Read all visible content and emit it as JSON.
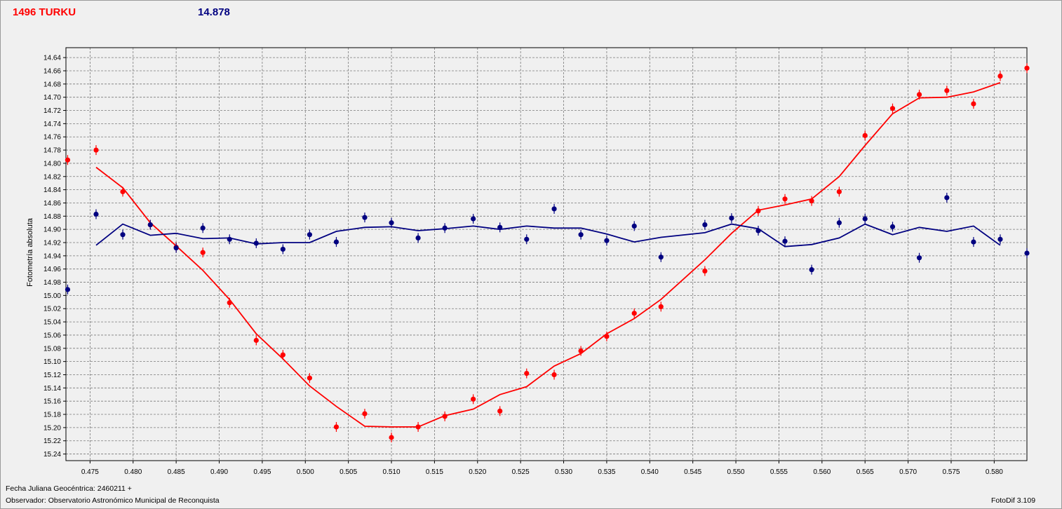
{
  "header": {
    "object_name": "1496 TURKU",
    "magnitude": "14.878"
  },
  "footer": {
    "jd_label": "Fecha Juliana Geocéntrica: 2460211 +",
    "observer_label": "Observador: Observatorio Astronómico Municipal de Reconquista",
    "software": "FotoDif 3.109"
  },
  "chart_data": {
    "type": "scatter",
    "ylabel": "Fotometría absoluta",
    "xlabel": "",
    "grid": true,
    "y_inverted": true,
    "xlim": [
      0.4722,
      0.5838
    ],
    "ylim": [
      14.625,
      15.25
    ],
    "x_ticks": [
      "0.475",
      "0.480",
      "0.485",
      "0.490",
      "0.495",
      "0.500",
      "0.505",
      "0.510",
      "0.515",
      "0.520",
      "0.525",
      "0.530",
      "0.535",
      "0.540",
      "0.545",
      "0.550",
      "0.555",
      "0.560",
      "0.565",
      "0.570",
      "0.575",
      "0.580"
    ],
    "y_ticks": [
      "14.64",
      "14.66",
      "14.68",
      "14.70",
      "14.72",
      "14.74",
      "14.76",
      "14.78",
      "14.80",
      "14.82",
      "14.84",
      "14.86",
      "14.88",
      "14.90",
      "14.92",
      "14.94",
      "14.96",
      "14.98",
      "15.00",
      "15.02",
      "15.04",
      "15.06",
      "15.08",
      "15.10",
      "15.12",
      "15.14",
      "15.16",
      "15.18",
      "15.20",
      "15.22",
      "15.24"
    ],
    "series": [
      {
        "color": "#ff0000",
        "points": [
          [
            0.4724,
            14.795
          ],
          [
            0.4757,
            14.78
          ],
          [
            0.4788,
            14.843
          ],
          [
            0.482,
            14.893
          ],
          [
            0.485,
            14.927
          ],
          [
            0.4881,
            14.935
          ],
          [
            0.4912,
            15.011
          ],
          [
            0.4943,
            15.068
          ],
          [
            0.4974,
            15.09
          ],
          [
            0.5005,
            15.125
          ],
          [
            0.5036,
            15.199
          ],
          [
            0.5069,
            15.179
          ],
          [
            0.51,
            15.215
          ],
          [
            0.5131,
            15.199
          ],
          [
            0.5162,
            15.183
          ],
          [
            0.5195,
            15.157
          ],
          [
            0.5226,
            15.175
          ],
          [
            0.5257,
            15.118
          ],
          [
            0.5289,
            15.12
          ],
          [
            0.532,
            15.084
          ],
          [
            0.535,
            15.062
          ],
          [
            0.5382,
            15.027
          ],
          [
            0.5413,
            15.017
          ],
          [
            0.5464,
            14.963
          ],
          [
            0.5526,
            14.872
          ],
          [
            0.5557,
            14.854
          ],
          [
            0.5588,
            14.857
          ],
          [
            0.562,
            14.843
          ],
          [
            0.565,
            14.758
          ],
          [
            0.5682,
            14.717
          ],
          [
            0.5713,
            14.696
          ],
          [
            0.5745,
            14.69
          ],
          [
            0.5776,
            14.71
          ],
          [
            0.5807,
            14.668
          ],
          [
            0.5838,
            14.656
          ]
        ],
        "fit": [
          [
            0.4757,
            14.806
          ],
          [
            0.4788,
            14.837
          ],
          [
            0.482,
            14.89
          ],
          [
            0.485,
            14.925
          ],
          [
            0.4881,
            14.962
          ],
          [
            0.4912,
            15.006
          ],
          [
            0.4943,
            15.058
          ],
          [
            0.4974,
            15.096
          ],
          [
            0.5005,
            15.137
          ],
          [
            0.5036,
            15.168
          ],
          [
            0.5069,
            15.198
          ],
          [
            0.51,
            15.199
          ],
          [
            0.5131,
            15.199
          ],
          [
            0.5162,
            15.182
          ],
          [
            0.5195,
            15.172
          ],
          [
            0.5226,
            15.15
          ],
          [
            0.5257,
            15.138
          ],
          [
            0.5289,
            15.107
          ],
          [
            0.532,
            15.088
          ],
          [
            0.535,
            15.058
          ],
          [
            0.5382,
            15.035
          ],
          [
            0.5413,
            15.006
          ],
          [
            0.5464,
            14.946
          ],
          [
            0.5495,
            14.906
          ],
          [
            0.5526,
            14.871
          ],
          [
            0.5557,
            14.863
          ],
          [
            0.5588,
            14.854
          ],
          [
            0.562,
            14.82
          ],
          [
            0.565,
            14.773
          ],
          [
            0.5682,
            14.725
          ],
          [
            0.5713,
            14.701
          ],
          [
            0.5745,
            14.7
          ],
          [
            0.5776,
            14.692
          ],
          [
            0.5807,
            14.678
          ]
        ]
      },
      {
        "color": "#000080",
        "points": [
          [
            0.4724,
            14.991
          ],
          [
            0.4757,
            14.877
          ],
          [
            0.4788,
            14.908
          ],
          [
            0.482,
            14.893
          ],
          [
            0.485,
            14.928
          ],
          [
            0.4881,
            14.898
          ],
          [
            0.4912,
            14.915
          ],
          [
            0.4943,
            14.921
          ],
          [
            0.4974,
            14.93
          ],
          [
            0.5005,
            14.908
          ],
          [
            0.5036,
            14.919
          ],
          [
            0.5069,
            14.882
          ],
          [
            0.51,
            14.89
          ],
          [
            0.5131,
            14.913
          ],
          [
            0.5162,
            14.898
          ],
          [
            0.5195,
            14.884
          ],
          [
            0.5226,
            14.897
          ],
          [
            0.5257,
            14.915
          ],
          [
            0.5289,
            14.869
          ],
          [
            0.532,
            14.908
          ],
          [
            0.535,
            14.917
          ],
          [
            0.5382,
            14.895
          ],
          [
            0.5413,
            14.942
          ],
          [
            0.5464,
            14.893
          ],
          [
            0.5495,
            14.883
          ],
          [
            0.5526,
            14.902
          ],
          [
            0.5557,
            14.918
          ],
          [
            0.5588,
            14.961
          ],
          [
            0.562,
            14.89
          ],
          [
            0.565,
            14.884
          ],
          [
            0.5682,
            14.896
          ],
          [
            0.5713,
            14.943
          ],
          [
            0.5745,
            14.852
          ],
          [
            0.5776,
            14.919
          ],
          [
            0.5807,
            14.915
          ],
          [
            0.5838,
            14.936
          ]
        ],
        "fit": [
          [
            0.4757,
            14.924
          ],
          [
            0.4788,
            14.892
          ],
          [
            0.482,
            14.909
          ],
          [
            0.485,
            14.906
          ],
          [
            0.4881,
            14.914
          ],
          [
            0.4912,
            14.913
          ],
          [
            0.4943,
            14.922
          ],
          [
            0.4974,
            14.92
          ],
          [
            0.5005,
            14.92
          ],
          [
            0.5036,
            14.903
          ],
          [
            0.5069,
            14.897
          ],
          [
            0.51,
            14.896
          ],
          [
            0.5131,
            14.902
          ],
          [
            0.5162,
            14.899
          ],
          [
            0.5195,
            14.895
          ],
          [
            0.5226,
            14.9
          ],
          [
            0.5257,
            14.895
          ],
          [
            0.5289,
            14.898
          ],
          [
            0.532,
            14.898
          ],
          [
            0.535,
            14.907
          ],
          [
            0.5382,
            14.919
          ],
          [
            0.5413,
            14.912
          ],
          [
            0.5464,
            14.905
          ],
          [
            0.5495,
            14.892
          ],
          [
            0.5526,
            14.899
          ],
          [
            0.5557,
            14.926
          ],
          [
            0.5588,
            14.923
          ],
          [
            0.562,
            14.913
          ],
          [
            0.565,
            14.892
          ],
          [
            0.5682,
            14.908
          ],
          [
            0.5713,
            14.897
          ],
          [
            0.5745,
            14.903
          ],
          [
            0.5776,
            14.895
          ],
          [
            0.5807,
            14.924
          ]
        ]
      }
    ]
  }
}
